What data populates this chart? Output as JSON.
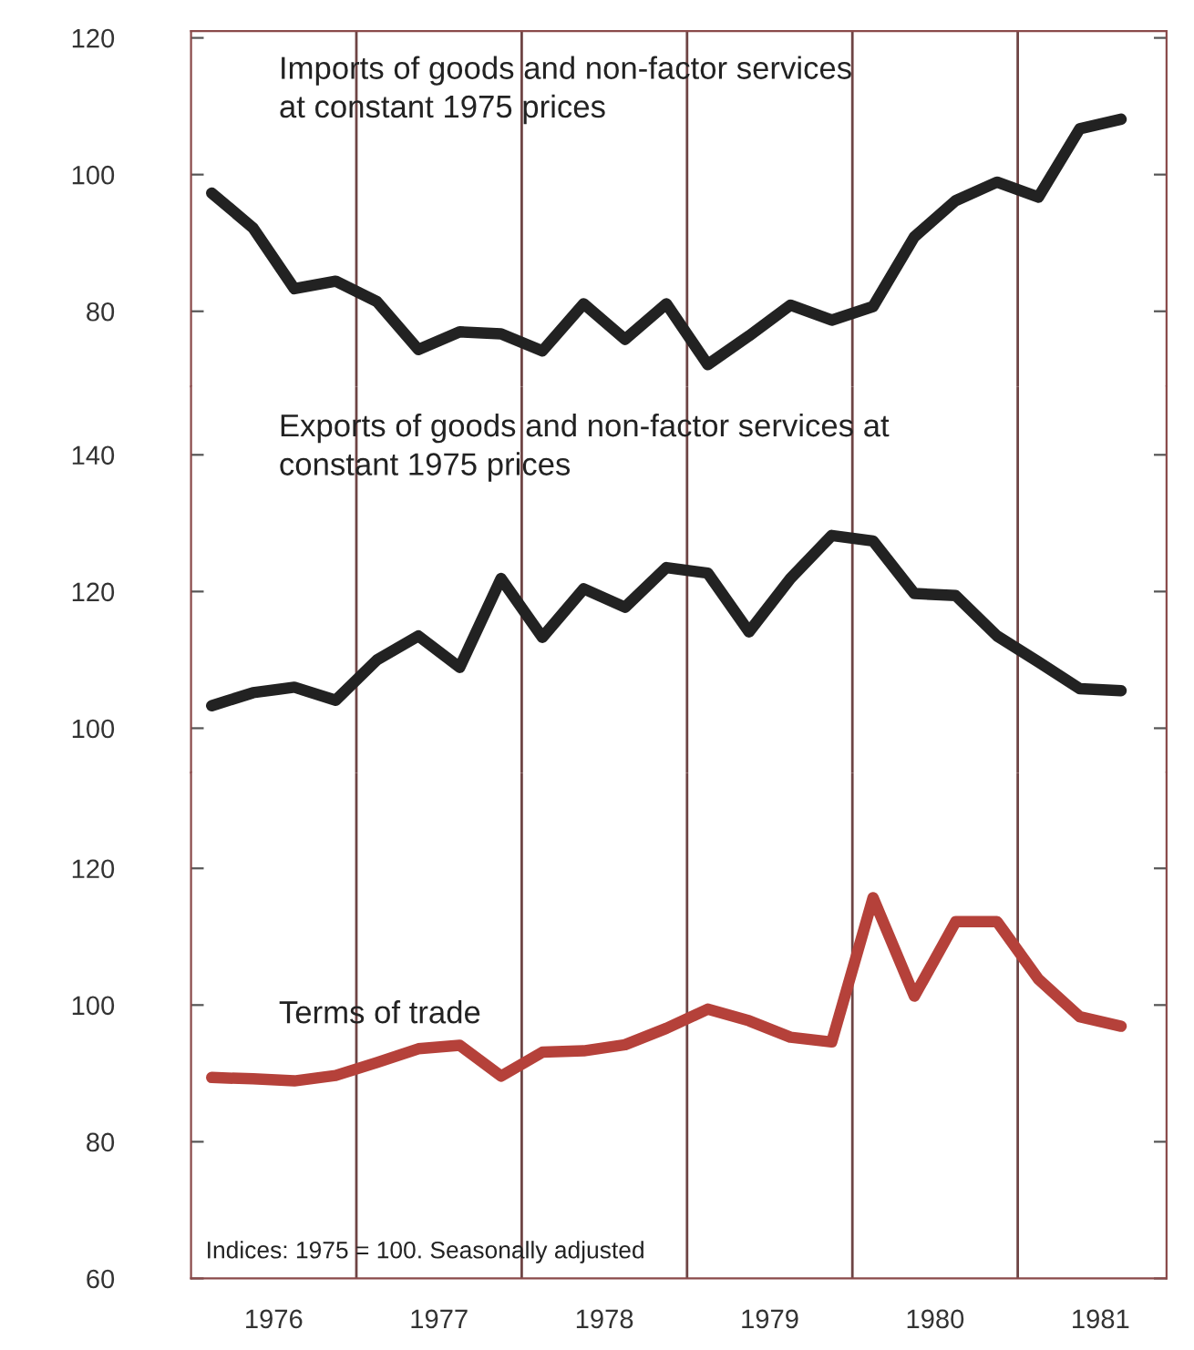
{
  "chart_data": [
    {
      "type": "line",
      "xlim": [
        1976,
        1981.9
      ],
      "ylim": [
        69,
        121
      ],
      "yticks": [
        80,
        100,
        120
      ],
      "tick_labels": "y",
      "x": [
        1976.125,
        1976.375,
        1976.625,
        1976.875,
        1977.125,
        1977.375,
        1977.625,
        1977.875,
        1978.125,
        1978.375,
        1978.625,
        1978.875,
        1979.125,
        1979.375,
        1979.625,
        1979.875,
        1980.125,
        1980.375,
        1980.625,
        1980.875,
        1981.125,
        1981.375,
        1981.625
      ],
      "series": [
        {
          "name": "Imports of goods and non-factor services\nat constant 1975 prices",
          "color": "#222222",
          "values": [
            97.3,
            92.2,
            83.3,
            84.4,
            81.4,
            74.4,
            77.0,
            76.7,
            74.2,
            81.1,
            75.9,
            81.1,
            72.2,
            76.4,
            80.9,
            78.7,
            80.7,
            90.9,
            96.2,
            98.9,
            96.7,
            106.7,
            108.1
          ]
        }
      ],
      "ref_lines": [
        {
          "axis": "x",
          "value": 1977,
          "color": "#6e4444"
        },
        {
          "axis": "x",
          "value": 1978,
          "color": "#6e4444"
        },
        {
          "axis": "x",
          "value": 1979,
          "color": "#6e4444"
        },
        {
          "axis": "x",
          "value": 1980,
          "color": "#6e4444"
        },
        {
          "axis": "x",
          "value": 1981,
          "color": "#6e4444"
        }
      ]
    },
    {
      "type": "line",
      "xlim": [
        1976,
        1981.9
      ],
      "ylim": [
        93.5,
        150
      ],
      "yticks": [
        100,
        120,
        140
      ],
      "tick_labels": "y",
      "x": [
        1976.125,
        1976.375,
        1976.625,
        1976.875,
        1977.125,
        1977.375,
        1977.625,
        1977.875,
        1978.125,
        1978.375,
        1978.625,
        1978.875,
        1979.125,
        1979.375,
        1979.625,
        1979.875,
        1980.125,
        1980.375,
        1980.625,
        1980.875,
        1981.125,
        1981.375,
        1981.625
      ],
      "series": [
        {
          "name": "Exports of goods and non-factor services at\nconstant 1975 prices",
          "color": "#222222",
          "values": [
            103.3,
            105.2,
            106.0,
            104.1,
            110.0,
            113.5,
            108.9,
            121.9,
            113.3,
            120.4,
            117.7,
            123.5,
            122.7,
            114.1,
            121.9,
            128.2,
            127.4,
            119.7,
            119.4,
            113.5,
            109.7,
            105.8,
            105.5
          ]
        }
      ],
      "ref_lines": [
        {
          "axis": "x",
          "value": 1977,
          "color": "#6e4444"
        },
        {
          "axis": "x",
          "value": 1978,
          "color": "#6e4444"
        },
        {
          "axis": "x",
          "value": 1979,
          "color": "#6e4444"
        },
        {
          "axis": "x",
          "value": 1980,
          "color": "#6e4444"
        },
        {
          "axis": "x",
          "value": 1981,
          "color": "#6e4444"
        }
      ]
    },
    {
      "type": "line",
      "xlim": [
        1976,
        1981.9
      ],
      "xticks": [
        {
          "value": 1976.5,
          "label": "1976"
        },
        {
          "value": 1977.5,
          "label": "1977"
        },
        {
          "value": 1978.5,
          "label": "1978"
        },
        {
          "value": 1979.5,
          "label": "1979"
        },
        {
          "value": 1980.5,
          "label": "1980"
        },
        {
          "value": 1981.5,
          "label": "1981"
        }
      ],
      "ylim": [
        60,
        134
      ],
      "yticks": [
        60,
        80,
        100,
        120
      ],
      "x": [
        1976.125,
        1976.375,
        1976.625,
        1976.875,
        1977.125,
        1977.375,
        1977.625,
        1977.875,
        1978.125,
        1978.375,
        1978.625,
        1978.875,
        1979.125,
        1979.375,
        1979.625,
        1979.875,
        1980.125,
        1980.375,
        1980.625,
        1980.875,
        1981.125,
        1981.375,
        1981.625
      ],
      "series": [
        {
          "name": "Terms of trade",
          "color": "#b5413a",
          "values": [
            89.4,
            89.2,
            88.9,
            89.7,
            91.6,
            93.6,
            94.1,
            89.6,
            93.1,
            93.3,
            94.2,
            96.6,
            99.4,
            97.7,
            95.3,
            94.6,
            115.7,
            101.3,
            112.2,
            112.2,
            103.8,
            98.3,
            96.9
          ]
        }
      ],
      "ref_lines": [
        {
          "axis": "x",
          "value": 1977,
          "color": "#6e4444"
        },
        {
          "axis": "x",
          "value": 1978,
          "color": "#6e4444"
        },
        {
          "axis": "x",
          "value": 1979,
          "color": "#6e4444"
        },
        {
          "axis": "x",
          "value": 1980,
          "color": "#6e4444"
        },
        {
          "axis": "x",
          "value": 1981,
          "color": "#6e4444"
        }
      ],
      "annotations": [
        "Indices: 1975 = 100. Seasonally adjusted"
      ]
    }
  ]
}
